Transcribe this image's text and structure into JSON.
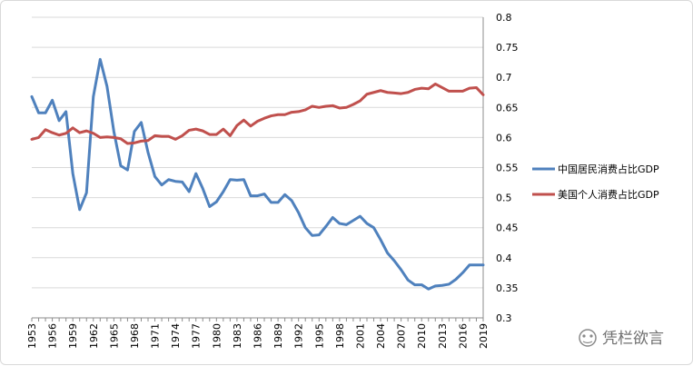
{
  "chart_data": {
    "type": "line",
    "title": "",
    "xlabel": "",
    "ylabel": "",
    "ylim": [
      0.3,
      0.8
    ],
    "y_ticks": [
      "0.8",
      "0.75",
      "0.7",
      "0.65",
      "0.6",
      "0.55",
      "0.5",
      "0.45",
      "0.4",
      "0.35",
      "0.3"
    ],
    "y_axis_side": "right",
    "x_tick_labels": [
      "1953",
      "1956",
      "1959",
      "1962",
      "1965",
      "1968",
      "1971",
      "1974",
      "1977",
      "1980",
      "1983",
      "1986",
      "1989",
      "1992",
      "1995",
      "1998",
      "2001",
      "2004",
      "2007",
      "2010",
      "2013",
      "2016",
      "2019"
    ],
    "x": [
      1953,
      1954,
      1955,
      1956,
      1957,
      1958,
      1959,
      1960,
      1961,
      1962,
      1963,
      1964,
      1965,
      1966,
      1967,
      1968,
      1969,
      1970,
      1971,
      1972,
      1973,
      1974,
      1975,
      1976,
      1977,
      1978,
      1979,
      1980,
      1981,
      1982,
      1983,
      1984,
      1985,
      1986,
      1987,
      1988,
      1989,
      1990,
      1991,
      1992,
      1993,
      1994,
      1995,
      1996,
      1997,
      1998,
      1999,
      2000,
      2001,
      2002,
      2003,
      2004,
      2005,
      2006,
      2007,
      2008,
      2009,
      2010,
      2011,
      2012,
      2013,
      2014,
      2015,
      2016,
      2017,
      2018,
      2019
    ],
    "grid": "horizontal",
    "legend_position": "right",
    "series": [
      {
        "name": "中国居民消费占比GDP",
        "color": "#4f81bd",
        "values": [
          0.668,
          0.641,
          0.641,
          0.662,
          0.628,
          0.643,
          0.54,
          0.48,
          0.508,
          0.668,
          0.73,
          0.685,
          0.61,
          0.553,
          0.546,
          0.61,
          0.625,
          0.575,
          0.535,
          0.521,
          0.53,
          0.527,
          0.526,
          0.51,
          0.54,
          0.515,
          0.485,
          0.493,
          0.51,
          0.53,
          0.529,
          0.53,
          0.503,
          0.503,
          0.506,
          0.492,
          0.492,
          0.505,
          0.495,
          0.475,
          0.45,
          0.437,
          0.438,
          0.452,
          0.467,
          0.457,
          0.455,
          0.462,
          0.469,
          0.457,
          0.45,
          0.43,
          0.408,
          0.395,
          0.38,
          0.363,
          0.355,
          0.355,
          0.348,
          0.353,
          0.354,
          0.356,
          0.364,
          0.375,
          0.388,
          0.388,
          0.388
        ]
      },
      {
        "name": "美国个人消费占比GDP",
        "color": "#c0504d",
        "values": [
          0.597,
          0.6,
          0.613,
          0.608,
          0.604,
          0.607,
          0.616,
          0.608,
          0.611,
          0.607,
          0.6,
          0.601,
          0.6,
          0.598,
          0.59,
          0.591,
          0.594,
          0.595,
          0.603,
          0.602,
          0.602,
          0.597,
          0.603,
          0.612,
          0.614,
          0.611,
          0.605,
          0.605,
          0.614,
          0.603,
          0.62,
          0.629,
          0.619,
          0.627,
          0.632,
          0.636,
          0.638,
          0.638,
          0.642,
          0.643,
          0.646,
          0.652,
          0.65,
          0.652,
          0.653,
          0.649,
          0.65,
          0.655,
          0.661,
          0.672,
          0.675,
          0.678,
          0.675,
          0.674,
          0.673,
          0.675,
          0.68,
          0.682,
          0.681,
          0.689,
          0.683,
          0.677,
          0.677,
          0.677,
          0.682,
          0.683,
          0.671
        ]
      }
    ]
  },
  "watermark": {
    "text": "凭栏欲言",
    "icon": "wechat-icon"
  }
}
